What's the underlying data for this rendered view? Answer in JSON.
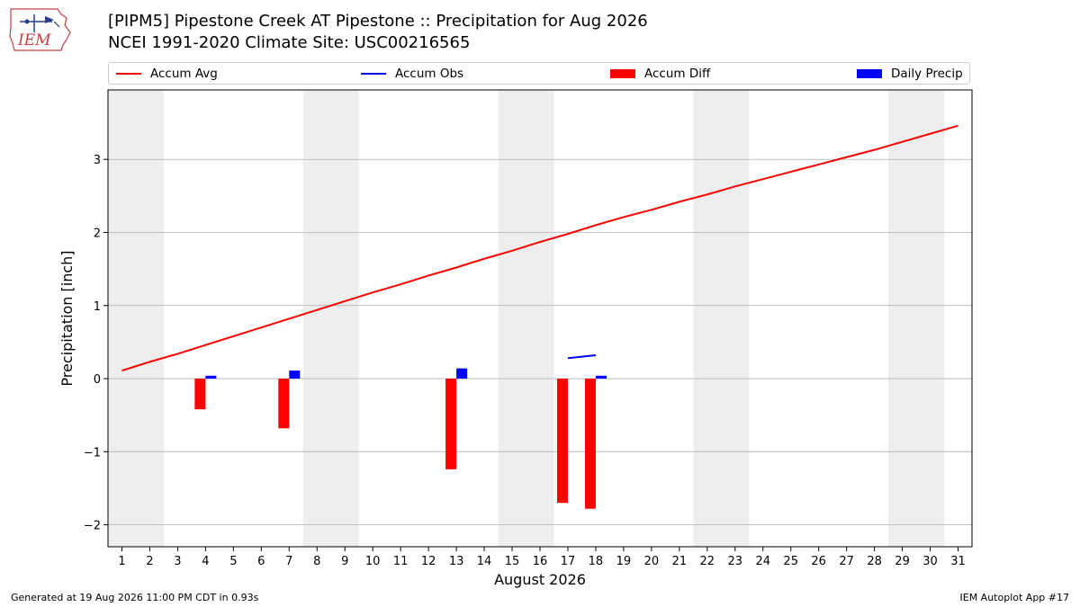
{
  "header": {
    "logo_text": "IEM",
    "title_line1": "[PIPM5] Pipestone Creek  AT Pipestone :: Precipitation for Aug 2026",
    "title_line2": "NCEI 1991-2020 Climate Site: USC00216565"
  },
  "legend": {
    "placement": "top",
    "items": [
      {
        "label": "Accum Avg",
        "kind": "line",
        "color": "#ff0000"
      },
      {
        "label": "Accum Obs",
        "kind": "line",
        "color": "#0000ff"
      },
      {
        "label": "Accum Diff",
        "kind": "bar",
        "color": "#ff0000"
      },
      {
        "label": "Daily Precip",
        "kind": "bar",
        "color": "#0000ff"
      }
    ]
  },
  "colors": {
    "avg": "#ff0000",
    "obs": "#0000ff",
    "diff": "#ff0000",
    "daily": "#0000ff",
    "weekend_shade": "#eeeeee",
    "grid": "#b0b0b0"
  },
  "chart_data": {
    "type": "bar",
    "xlabel": "August 2026",
    "ylabel": "Precipitation [inch]",
    "xlim": [
      0.5,
      31.5
    ],
    "ylim": [
      -2.3,
      3.95
    ],
    "x_ticks": [
      1,
      2,
      3,
      4,
      5,
      6,
      7,
      8,
      9,
      10,
      11,
      12,
      13,
      14,
      15,
      16,
      17,
      18,
      19,
      20,
      21,
      22,
      23,
      24,
      25,
      26,
      27,
      28,
      29,
      30,
      31
    ],
    "y_ticks": [
      -2,
      -1,
      0,
      1,
      2,
      3
    ],
    "y_tick_labels": [
      "−2",
      "−1",
      "0",
      "1",
      "2",
      "3"
    ],
    "grid": "y",
    "weekend_spans": [
      [
        1,
        2
      ],
      [
        8,
        9
      ],
      [
        15,
        16
      ],
      [
        22,
        23
      ],
      [
        29,
        30
      ]
    ],
    "accum_avg": {
      "x": [
        1,
        2,
        3,
        4,
        5,
        6,
        7,
        8,
        9,
        10,
        11,
        12,
        13,
        14,
        15,
        16,
        17,
        18,
        19,
        20,
        21,
        22,
        23,
        24,
        25,
        26,
        27,
        28,
        29,
        30,
        31
      ],
      "values": [
        0.11,
        0.23,
        0.34,
        0.46,
        0.58,
        0.7,
        0.82,
        0.94,
        1.06,
        1.18,
        1.29,
        1.41,
        1.52,
        1.64,
        1.75,
        1.87,
        1.98,
        2.1,
        2.21,
        2.31,
        2.42,
        2.52,
        2.63,
        2.73,
        2.83,
        2.93,
        3.03,
        3.13,
        3.24,
        3.35,
        3.46
      ]
    },
    "accum_obs": {
      "x": [
        17,
        18
      ],
      "values": [
        0.28,
        0.32
      ]
    },
    "accum_diff": {
      "x": [
        4,
        7,
        13,
        17,
        18
      ],
      "values": [
        -0.42,
        -0.68,
        -1.24,
        -1.7,
        -1.78
      ]
    },
    "daily_precip": {
      "x": [
        4,
        7,
        13,
        18
      ],
      "values": [
        0.04,
        0.11,
        0.14,
        0.04
      ]
    }
  },
  "footer": {
    "generated": "Generated at 19 Aug 2026 11:00 PM CDT in 0.93s",
    "app": "IEM Autoplot App #17"
  }
}
